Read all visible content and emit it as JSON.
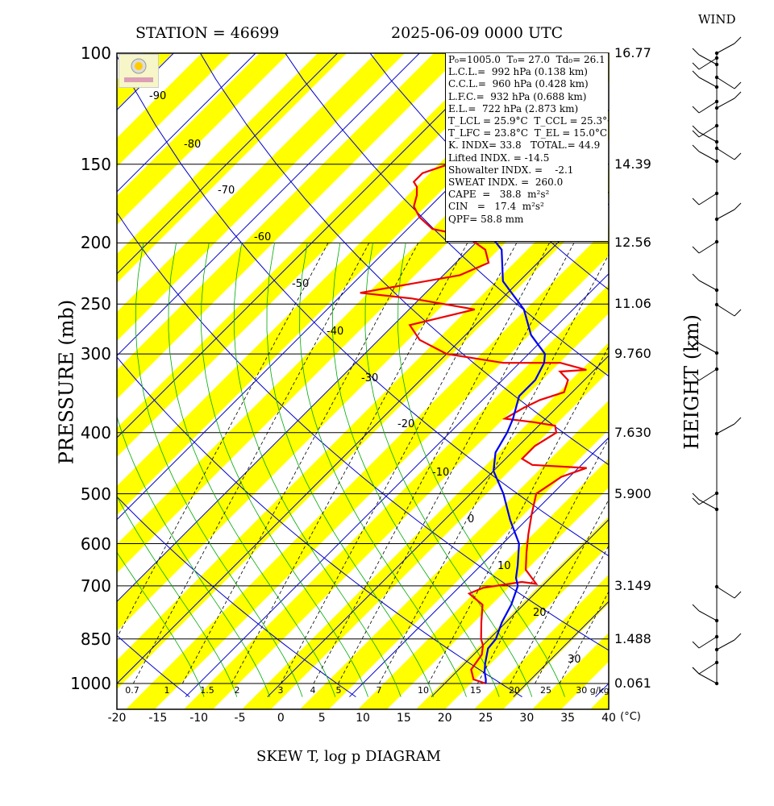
{
  "header": {
    "station": "STATION = 46699",
    "datetime": "2025-06-09 0000 UTC",
    "wind_label": "WIND",
    "footer": "SKEW T, log p DIAGRAM",
    "ylabel_left": "PRESSURE (mb)",
    "ylabel_right": "HEIGHT (km)",
    "temp_unit": "(°C)"
  },
  "pressure_levels": [
    {
      "p": 100,
      "label": "100",
      "height": "16.77"
    },
    {
      "p": 150,
      "label": "150",
      "height": "14.39"
    },
    {
      "p": 200,
      "label": "200",
      "height": "12.56"
    },
    {
      "p": 250,
      "label": "250",
      "height": "11.06"
    },
    {
      "p": 300,
      "label": "300",
      "height": "9.760"
    },
    {
      "p": 400,
      "label": "400",
      "height": "7.630"
    },
    {
      "p": 500,
      "label": "500",
      "height": "5.900"
    },
    {
      "p": 600,
      "label": "600",
      "height": ""
    },
    {
      "p": 700,
      "label": "700",
      "height": "3.149"
    },
    {
      "p": 850,
      "label": "850",
      "height": "1.488"
    },
    {
      "p": 1000,
      "label": "1000",
      "height": "0.061"
    }
  ],
  "temp_ticks": [
    "-20",
    "-15",
    "-10",
    "-5",
    "0",
    "5",
    "10",
    "15",
    "20",
    "25",
    "30",
    "35",
    "40"
  ],
  "mixing_ratio_labels": [
    "0.7",
    "1",
    "1.5",
    "2",
    "3",
    "4",
    "5",
    "7",
    "10",
    "15",
    "20",
    "25",
    "30 g/kg"
  ],
  "isotherm_labels": [
    "-90",
    "-80",
    "-70",
    "-60",
    "-50",
    "-40",
    "-30",
    "-20",
    "-10",
    "0",
    "10",
    "20",
    "30"
  ],
  "info": {
    "line1": "P₀=1005.0  T₀= 27.0  Td₀= 26.1",
    "lcl": "L.C.L.=  992 hPa (0.138 km)",
    "ccl": "C.C.L.=  960 hPa (0.428 km)",
    "lfc": "L.F.C.=  932 hPa (0.688 km)",
    "el": "E.L.=  722 hPa (2.873 km)",
    "tlcl": "T_LCL = 25.9°C  T_CCL = 25.3°C",
    "tlfc": "T_LFC = 23.8°C  T_EL = 15.0°C",
    "kindex": "K. INDX= 33.8   TOTAL.= 44.9",
    "lifted": "Lifted INDX. = -14.5",
    "showalter": "Showalter INDX. =    -2.1",
    "sweat": "SWEAT INDX. =  260.0",
    "cape": "CAPE  =   38.8  m²s²",
    "cin": "CIN   =   17.4  m²s²",
    "qpf": "QPF= 58.8 mm"
  },
  "colors": {
    "yellow_band": "#ffff00",
    "isotherm_blue": "#0000cc",
    "temperature_red": "#ee0000",
    "dewpoint_blue": "#0000ee",
    "moist_adiabat_green": "#00aa00"
  },
  "chart_data": {
    "type": "line",
    "title": "SKEW T, log p DIAGRAM",
    "xlabel": "(°C)",
    "ylabel": "PRESSURE (mb)",
    "xlim": [
      -20,
      40
    ],
    "ylim": [
      1000,
      100
    ],
    "yscale": "log",
    "series": [
      {
        "points": [
          [
            25,
            1000
          ],
          [
            23,
            985
          ],
          [
            21.5,
            950
          ],
          [
            21,
            900
          ],
          [
            20,
            870
          ],
          [
            19,
            850
          ],
          [
            17,
            800
          ],
          [
            15,
            750
          ],
          [
            12,
            720
          ],
          [
            13,
            705
          ],
          [
            17,
            690
          ],
          [
            19,
            695
          ],
          [
            16,
            660
          ],
          [
            14,
            620
          ],
          [
            12,
            580
          ],
          [
            10,
            540
          ],
          [
            8,
            500
          ],
          [
            9,
            470
          ],
          [
            11,
            455
          ],
          [
            4,
            450
          ],
          [
            2,
            440
          ],
          [
            2,
            420
          ],
          [
            3,
            400
          ],
          [
            2,
            390
          ],
          [
            -1,
            385
          ],
          [
            -5,
            380
          ],
          [
            -4,
            365
          ],
          [
            -3,
            355
          ],
          [
            -1,
            345
          ],
          [
            -2,
            330
          ],
          [
            -4,
            320
          ],
          [
            -1,
            318
          ],
          [
            -5,
            310
          ],
          [
            -12,
            310
          ],
          [
            -20,
            300
          ],
          [
            -25,
            285
          ],
          [
            -28,
            270
          ],
          [
            -22,
            255
          ],
          [
            -31,
            245
          ],
          [
            -38,
            240
          ],
          [
            -28,
            225
          ],
          [
            -26,
            215
          ],
          [
            -28,
            205
          ],
          [
            -30,
            200
          ],
          [
            -32,
            195
          ],
          [
            -37,
            190
          ],
          [
            -40,
            182
          ],
          [
            -42,
            175
          ],
          [
            -43,
            168
          ],
          [
            -44,
            163
          ],
          [
            -45,
            160
          ],
          [
            -45,
            155
          ],
          [
            -42,
            148
          ],
          [
            -38,
            140
          ],
          [
            -36,
            132
          ],
          [
            -34,
            123
          ],
          [
            -36,
            112
          ],
          [
            -40,
            100
          ]
        ]
      },
      {
        "points": [
          [
            25,
            1000
          ],
          [
            24.5,
            985
          ],
          [
            23.5,
            960
          ],
          [
            22.5,
            930
          ],
          [
            21,
            880
          ],
          [
            20.8,
            850
          ],
          [
            19.5,
            800
          ],
          [
            18.5,
            750
          ],
          [
            17,
            700
          ],
          [
            15.8,
            680
          ],
          [
            14.5,
            650
          ],
          [
            12,
            600
          ],
          [
            8,
            550
          ],
          [
            4,
            500
          ],
          [
            0,
            460
          ],
          [
            -2,
            430
          ],
          [
            -3,
            400
          ],
          [
            -4,
            380
          ],
          [
            -6,
            350
          ],
          [
            -6,
            330
          ],
          [
            -7,
            310
          ],
          [
            -8,
            300
          ],
          [
            -12,
            280
          ],
          [
            -16,
            255
          ],
          [
            -22,
            230
          ],
          [
            -26,
            205
          ],
          [
            -29,
            195
          ],
          [
            -33,
            180
          ],
          [
            -40,
            160
          ],
          [
            -44,
            145
          ],
          [
            -44,
            130
          ],
          [
            -44,
            115
          ],
          [
            -42,
            100
          ]
        ]
      }
    ]
  }
}
